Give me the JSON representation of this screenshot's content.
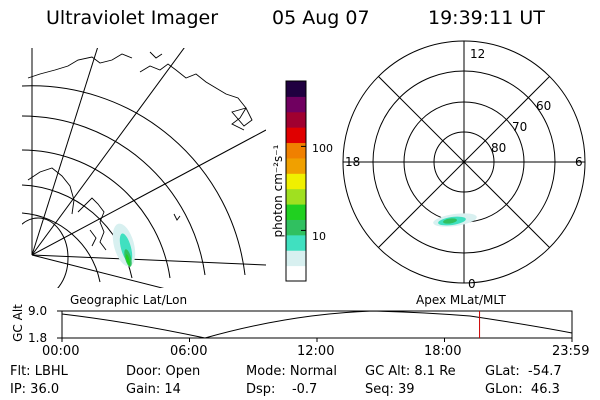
{
  "header": {
    "instrument": "Ultraviolet Imager",
    "date": "05 Aug 07",
    "time": "19:39:11 UT"
  },
  "colorbar": {
    "label": "photon cm⁻²s⁻¹",
    "ticks": [
      {
        "label": "100",
        "value": 100
      },
      {
        "label": "10",
        "value": 10
      }
    ],
    "scale": "log",
    "range": [
      2.5,
      600
    ],
    "colors": [
      "#ffffff",
      "#d8f0f0",
      "#40e0c0",
      "#30c060",
      "#20d020",
      "#a0e020",
      "#f0f000",
      "#f0a000",
      "#f08000",
      "#e00000",
      "#a00030",
      "#700060",
      "#200040"
    ]
  },
  "panels": {
    "geographic": {
      "label": "Geographic Lat/Lon"
    },
    "apex": {
      "label": "Apex MLat/MLT",
      "mlt_labels": {
        "top": "12",
        "left": "18",
        "right": "6",
        "bottom": "0"
      },
      "lat_labels": [
        "60",
        "70",
        "80"
      ]
    }
  },
  "altitude_plot": {
    "ylabel": "GC Alt",
    "yticks": [
      "9.0",
      "1.8"
    ],
    "xticks": [
      "00:00",
      "06:00",
      "12:00",
      "18:00",
      "23:59"
    ],
    "marker_color": "#cc0000",
    "marker_time_hours": 19.65
  },
  "footer": {
    "filter": "Flt: LBHL",
    "ip": "IP: 36.0",
    "door": "Door: Open",
    "gain": "Gain: 14",
    "mode": "Mode: Normal",
    "dsp": "Dsp:    -0.7",
    "gcalt": "GC Alt: 8.1 Re",
    "seq": "Seq: 39",
    "glat": "GLat:  -54.7",
    "glon": "GLon:  46.3"
  }
}
